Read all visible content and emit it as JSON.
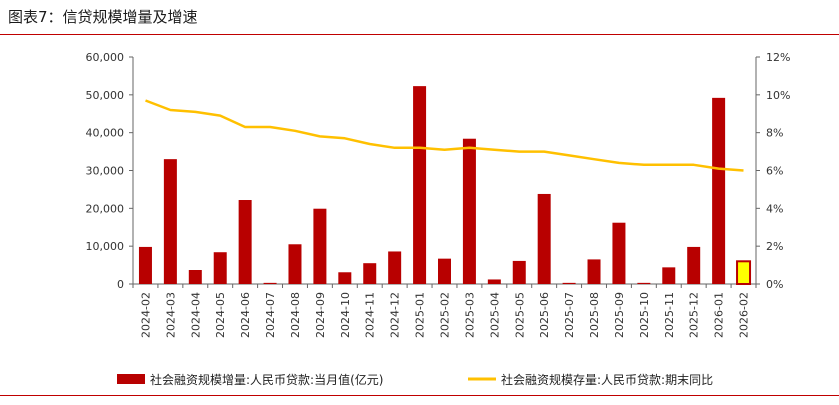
{
  "header": {
    "title": "图表7：信贷规模增量及增速"
  },
  "chart_data": {
    "type": "bar",
    "categories": [
      "2024-02",
      "2024-03",
      "2024-04",
      "2024-05",
      "2024-06",
      "2024-07",
      "2024-08",
      "2024-09",
      "2024-10",
      "2024-11",
      "2024-12",
      "2025-01",
      "2025-02",
      "2025-03",
      "2025-04",
      "2025-05",
      "2025-06",
      "2025-07",
      "2025-08",
      "2025-09",
      "2025-10",
      "2025-11",
      "2025-12",
      "2026-01",
      "2026-02"
    ],
    "series": [
      {
        "name": "社会融资规模增量:人民币贷款:当月值(亿元)",
        "type": "bar",
        "axis": "left",
        "color": "#b80000",
        "highlight_last": true,
        "highlight_color": "#ffff00",
        "values": [
          9800,
          33000,
          3700,
          8400,
          22200,
          300,
          10500,
          19900,
          3100,
          5500,
          8600,
          52300,
          6700,
          38400,
          1200,
          6100,
          23800,
          300,
          6500,
          16200,
          300,
          4400,
          9800,
          49200,
          6000
        ]
      },
      {
        "name": "社会融资规模存量:人民币贷款:期末同比",
        "type": "line",
        "axis": "right",
        "color": "#ffc000",
        "values": [
          9.7,
          9.2,
          9.1,
          8.9,
          8.3,
          8.3,
          8.1,
          7.8,
          7.7,
          7.4,
          7.2,
          7.2,
          7.1,
          7.2,
          7.1,
          7.0,
          7.0,
          6.8,
          6.6,
          6.4,
          6.3,
          6.3,
          6.3,
          6.1,
          6.0
        ]
      }
    ],
    "y_left": {
      "ylim": [
        0,
        60000
      ],
      "ticks": [
        "0",
        "10,000",
        "20,000",
        "30,000",
        "40,000",
        "50,000",
        "60,000"
      ]
    },
    "y_right": {
      "ylim": [
        0,
        12
      ],
      "ticks": [
        "0%",
        "2%",
        "4%",
        "6%",
        "8%",
        "10%",
        "12%"
      ]
    },
    "grid": false,
    "legend": {
      "position": "bottom"
    }
  }
}
